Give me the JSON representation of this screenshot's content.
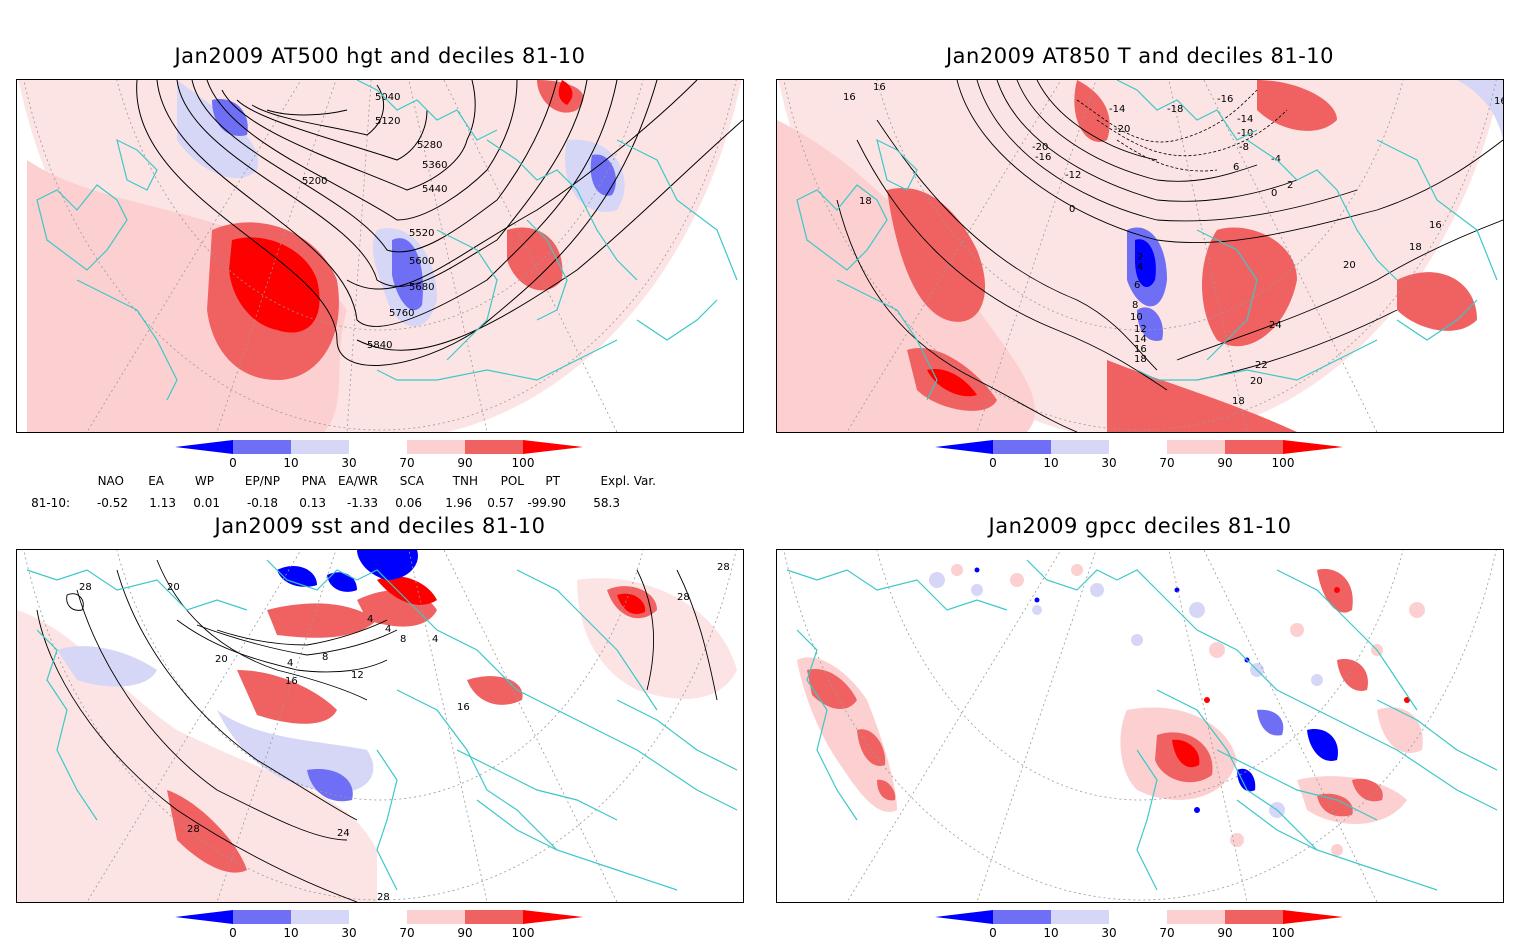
{
  "panels": [
    {
      "title": "Jan2009 AT500 hgt and deciles 81-10",
      "contour_labels": [
        "5040",
        "5120",
        "5200",
        "5280",
        "5360",
        "5440",
        "5520",
        "5600",
        "5680",
        "5760",
        "5840"
      ]
    },
    {
      "title": "Jan2009 AT850 T and deciles 81-10",
      "contour_labels": [
        "16",
        "18",
        "-20",
        "-16",
        "-12",
        "-10",
        "-8",
        "-4",
        "0",
        "2",
        "4",
        "6",
        "8",
        "10",
        "12",
        "14",
        "16",
        "18",
        "20",
        "22",
        "24",
        "-18",
        "-14",
        "16",
        "18",
        "16"
      ]
    },
    {
      "title": "Jan2009 sst and deciles 81-10",
      "contour_labels": [
        "28",
        "20",
        "20",
        "16",
        "12",
        "8",
        "4",
        "4",
        "4",
        "24",
        "28",
        "28",
        "28"
      ]
    },
    {
      "title": "Jan2009 gpcc deciles 81-10",
      "contour_labels": []
    }
  ],
  "colorbar": {
    "ticks": [
      "0",
      "10",
      "30",
      "70",
      "90",
      "100"
    ],
    "colors": [
      "#0000ff",
      "#6f6ff5",
      "#d6d6f7",
      "#ffffff",
      "#fcd0d0",
      "#f06262",
      "#ff0000"
    ]
  },
  "indices": {
    "names": [
      "NAO",
      "EA",
      "WP",
      "EP/NP",
      "PNA",
      "EA/WR",
      "SCA",
      "TNH",
      "POL",
      "PT",
      "Expl. Var."
    ],
    "row_label": "81-10:",
    "values": [
      "-0.52",
      "1.13",
      "0.01",
      "-0.18",
      "0.13",
      "-1.33",
      "0.06",
      "1.96",
      "0.57",
      "-99.90",
      "58.3"
    ]
  },
  "map_colors": {
    "coast": "#3cc8c8",
    "grid": "#999999",
    "contour": "#000000"
  }
}
